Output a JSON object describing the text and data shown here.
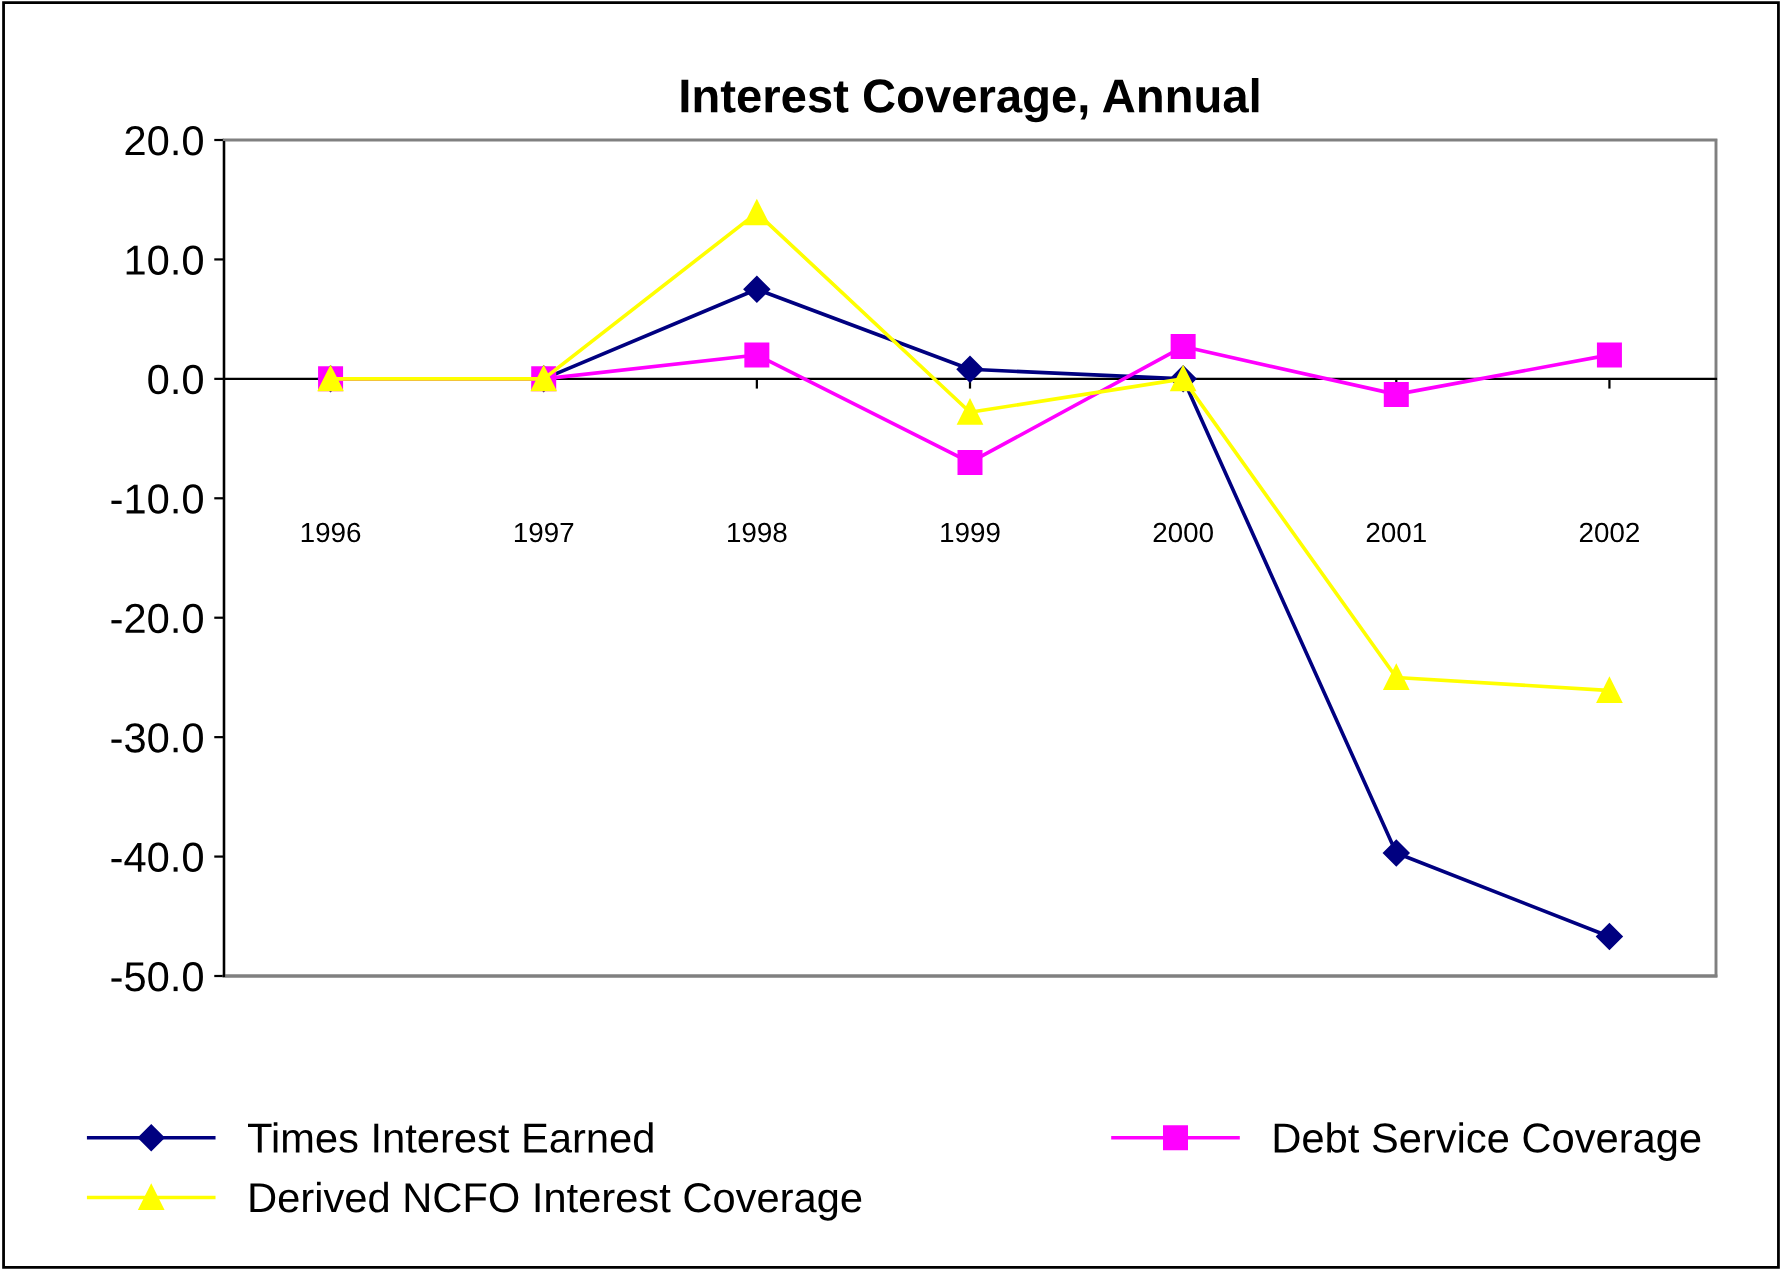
{
  "chart_data": {
    "type": "line",
    "title": "Interest Coverage, Annual",
    "categories": [
      "1996",
      "1997",
      "1998",
      "1999",
      "2000",
      "2001",
      "2002"
    ],
    "series": [
      {
        "name": "Times Interest Earned",
        "color": "#000080",
        "marker": "diamond",
        "values": [
          0,
          0,
          7.5,
          0.8,
          0,
          -39.7,
          -46.7
        ]
      },
      {
        "name": "Debt Service Coverage",
        "color": "#ff00ff",
        "marker": "square",
        "values": [
          0,
          0,
          2.0,
          -7.0,
          2.7,
          -1.3,
          2.0
        ]
      },
      {
        "name": "Derived NCFO Interest Coverage",
        "color": "#ffff00",
        "marker": "triangle",
        "values": [
          0,
          0,
          13.9,
          -2.8,
          0,
          -25.0,
          -26.1
        ]
      }
    ],
    "ylim": [
      -50,
      20
    ],
    "yticks": [
      {
        "value": -50,
        "label": "-50.0"
      },
      {
        "value": -40,
        "label": "-40.0"
      },
      {
        "value": -30,
        "label": "-30.0"
      },
      {
        "value": -20,
        "label": "-20.0"
      },
      {
        "value": -10,
        "label": "-10.0"
      },
      {
        "value": 0,
        "label": "0.0"
      },
      {
        "value": 10,
        "label": "10.0"
      },
      {
        "value": 20,
        "label": "20.0"
      }
    ],
    "legend": "bottom",
    "line_style": "solid"
  }
}
